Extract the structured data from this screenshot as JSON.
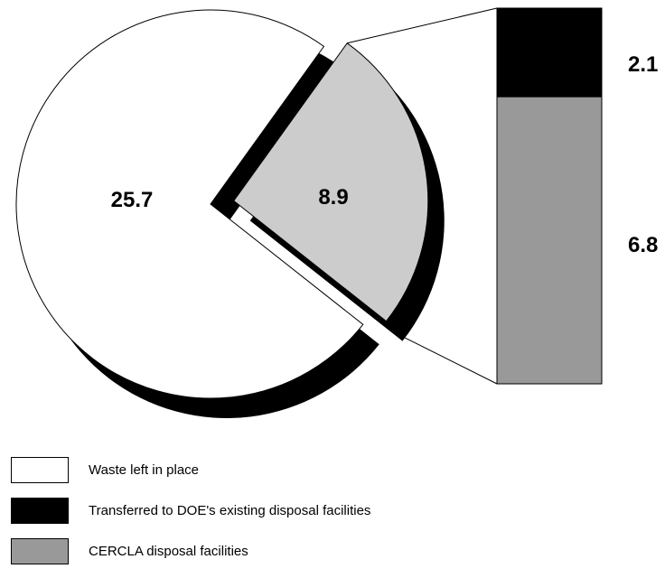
{
  "chart_data": {
    "type": "pie",
    "slices": [
      {
        "label": "Waste left in place",
        "value": 25.7,
        "color": "#ffffff"
      },
      {
        "label": "Transferred to DOE's existing disposal facilities",
        "value": 2.1,
        "color": "#000000"
      },
      {
        "label": "CERCLA disposal facilities",
        "value": 6.8,
        "color": "#999999"
      }
    ],
    "pie_labels": {
      "main": "25.7",
      "exploded": "8.9"
    },
    "breakout_bar": {
      "segments": [
        {
          "label": "Transferred to DOE's existing disposal facilities",
          "value": 2.1,
          "display": "2.1",
          "color": "#000000"
        },
        {
          "label": "CERCLA disposal facilities",
          "value": 6.8,
          "display": "6.8",
          "color": "#999999"
        }
      ]
    },
    "legend_placement": "bottom-left",
    "colors": {
      "waste": "#ffffff",
      "doe": "#000000",
      "cercla": "#999999",
      "exploded_pie": "#cccccc",
      "shadow": "#000000"
    }
  },
  "legend": [
    {
      "label": "Waste left in place",
      "color": "#ffffff"
    },
    {
      "label": "Transferred to DOE's existing disposal facilities",
      "color": "#000000"
    },
    {
      "label": "CERCLA disposal facilities",
      "color": "#999999"
    }
  ]
}
